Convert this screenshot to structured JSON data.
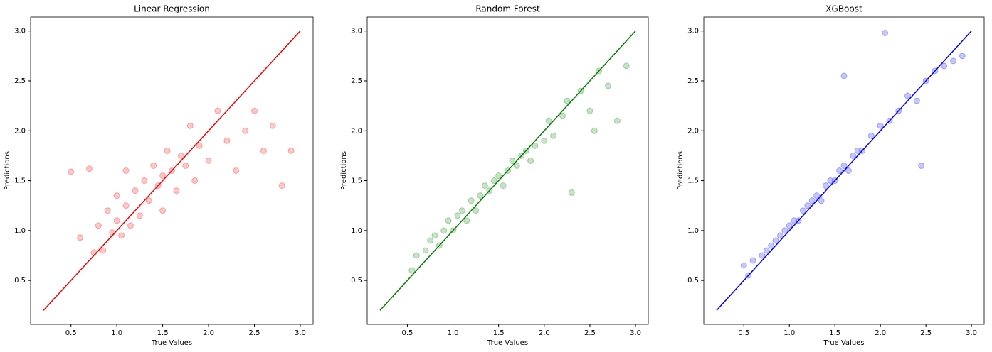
{
  "chart_data": [
    {
      "type": "scatter",
      "title": "Linear Regression",
      "x_label": "True Values",
      "y_label": "Predictions",
      "color": "#ff0000",
      "x": [
        0.5,
        0.6,
        0.7,
        0.75,
        0.8,
        0.85,
        0.9,
        0.95,
        1.0,
        1.0,
        1.05,
        1.1,
        1.1,
        1.15,
        1.2,
        1.25,
        1.3,
        1.35,
        1.4,
        1.45,
        1.5,
        1.5,
        1.55,
        1.6,
        1.65,
        1.7,
        1.75,
        1.8,
        1.85,
        1.9,
        2.0,
        2.1,
        2.2,
        2.3,
        2.4,
        2.5,
        2.6,
        2.7,
        2.8,
        2.9
      ],
      "y": [
        1.59,
        0.93,
        1.62,
        0.78,
        1.05,
        0.8,
        1.2,
        0.98,
        1.1,
        1.35,
        0.95,
        1.25,
        1.6,
        1.05,
        1.4,
        1.15,
        1.5,
        1.3,
        1.65,
        1.45,
        1.55,
        1.2,
        1.8,
        1.6,
        1.4,
        1.75,
        1.65,
        2.05,
        1.5,
        1.85,
        1.7,
        2.2,
        1.9,
        1.6,
        2.0,
        2.2,
        1.8,
        2.05,
        1.45,
        1.8
      ],
      "line_x": [
        0.2,
        3.0
      ],
      "line_y": [
        0.2,
        3.0
      ],
      "xlim": [
        0.06,
        3.14
      ],
      "ylim": [
        0.06,
        3.14
      ],
      "xticks": [
        0.5,
        {
          "value": 1,
          "label": "1.0"
        },
        1.5,
        {
          "value": 2,
          "label": "2.0"
        },
        2.5,
        {
          "value": 3,
          "label": "3.0"
        }
      ],
      "yticks": [
        0.5,
        {
          "value": 1,
          "label": "1.0"
        },
        1.5,
        {
          "value": 2,
          "label": "2.0"
        },
        2.5,
        {
          "value": 3,
          "label": "3.0"
        }
      ]
    },
    {
      "type": "scatter",
      "title": "Random Forest",
      "x_label": "True Values",
      "y_label": "Predictions",
      "color": "#008000",
      "x": [
        0.55,
        0.6,
        0.7,
        0.75,
        0.8,
        0.85,
        0.9,
        0.95,
        1.0,
        1.05,
        1.1,
        1.15,
        1.2,
        1.25,
        1.3,
        1.35,
        1.4,
        1.45,
        1.5,
        1.55,
        1.6,
        1.65,
        1.7,
        1.75,
        1.8,
        1.85,
        1.9,
        2.0,
        2.05,
        2.1,
        2.2,
        2.25,
        2.3,
        2.4,
        2.5,
        2.55,
        2.6,
        2.7,
        2.8,
        2.9
      ],
      "y": [
        0.6,
        0.75,
        0.8,
        0.9,
        0.95,
        0.85,
        1.0,
        1.1,
        1.0,
        1.15,
        1.2,
        1.1,
        1.3,
        1.2,
        1.35,
        1.45,
        1.4,
        1.5,
        1.55,
        1.45,
        1.6,
        1.7,
        1.65,
        1.75,
        1.8,
        1.7,
        1.85,
        1.9,
        2.1,
        1.95,
        2.15,
        2.3,
        1.38,
        2.4,
        2.2,
        2.0,
        2.6,
        2.45,
        2.1,
        2.65
      ],
      "line_x": [
        0.2,
        3.0
      ],
      "line_y": [
        0.2,
        3.0
      ],
      "xlim": [
        0.06,
        3.14
      ],
      "ylim": [
        0.06,
        3.14
      ],
      "xticks": [
        0.5,
        {
          "value": 1,
          "label": "1.0"
        },
        1.5,
        {
          "value": 2,
          "label": "2.0"
        },
        2.5,
        {
          "value": 3,
          "label": "3.0"
        }
      ],
      "yticks": [
        0.5,
        {
          "value": 1,
          "label": "1.0"
        },
        1.5,
        {
          "value": 2,
          "label": "2.0"
        },
        2.5,
        {
          "value": 3,
          "label": "3.0"
        }
      ]
    },
    {
      "type": "scatter",
      "title": "XGBoost",
      "x_label": "True Values",
      "y_label": "Predictions",
      "color": "#0000ff",
      "x": [
        0.5,
        0.55,
        0.6,
        0.7,
        0.75,
        0.8,
        0.85,
        0.9,
        0.95,
        1.0,
        1.05,
        1.1,
        1.15,
        1.2,
        1.25,
        1.3,
        1.35,
        1.4,
        1.45,
        1.5,
        1.55,
        1.6,
        1.65,
        1.7,
        1.75,
        1.8,
        1.9,
        2.0,
        2.1,
        2.2,
        2.3,
        2.4,
        2.5,
        2.6,
        2.7,
        2.8,
        2.9,
        2.05,
        1.6,
        2.45
      ],
      "y": [
        0.65,
        0.55,
        0.7,
        0.75,
        0.8,
        0.85,
        0.9,
        0.95,
        1.0,
        1.05,
        1.1,
        1.1,
        1.2,
        1.25,
        1.3,
        1.35,
        1.3,
        1.45,
        1.5,
        1.5,
        1.6,
        1.65,
        1.6,
        1.75,
        1.8,
        1.8,
        1.95,
        2.05,
        2.1,
        2.2,
        2.35,
        2.3,
        2.5,
        2.6,
        2.65,
        2.7,
        2.75,
        2.98,
        2.55,
        1.65
      ],
      "line_x": [
        0.2,
        3.0
      ],
      "line_y": [
        0.2,
        3.0
      ],
      "xlim": [
        0.06,
        3.14
      ],
      "ylim": [
        0.06,
        3.14
      ],
      "xticks": [
        0.5,
        {
          "value": 1,
          "label": "1.0"
        },
        1.5,
        {
          "value": 2,
          "label": "2.0"
        },
        2.5,
        {
          "value": 3,
          "label": "3.0"
        }
      ],
      "yticks": [
        0.5,
        {
          "value": 1,
          "label": "1.0"
        },
        1.5,
        {
          "value": 2,
          "label": "2.0"
        },
        2.5,
        {
          "value": 3,
          "label": "3.0"
        }
      ]
    }
  ]
}
